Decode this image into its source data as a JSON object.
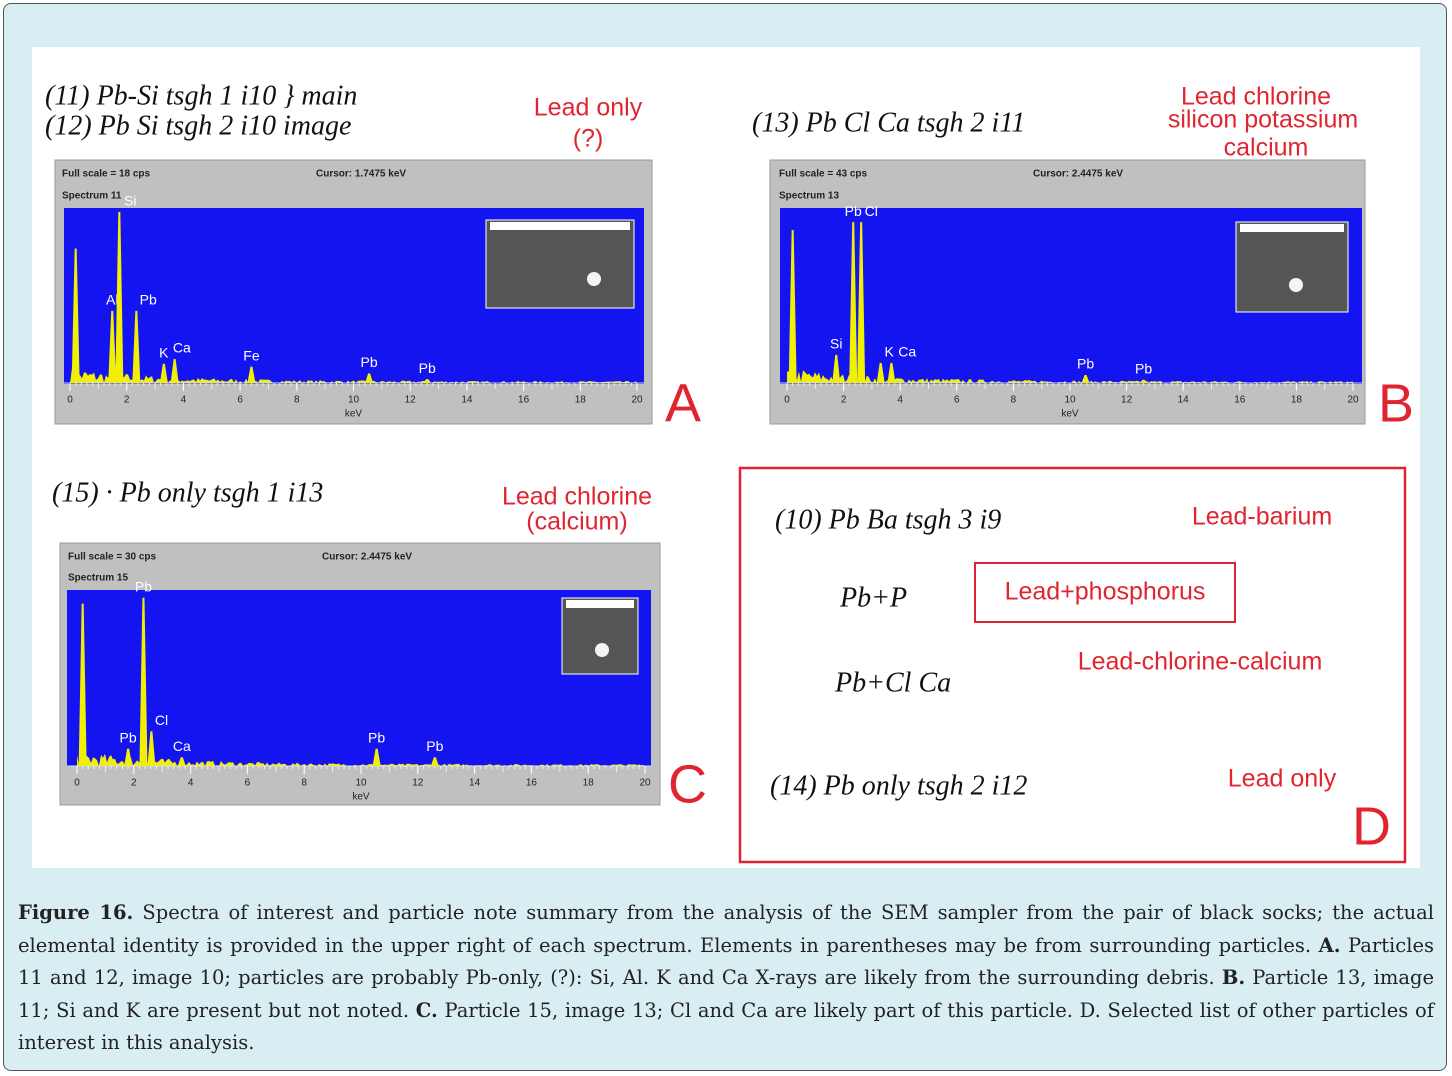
{
  "figure": {
    "panels": [
      {
        "letter": "A",
        "notes": [
          "(11)  Pb-Si  tsgh 1  i10  } main",
          "(12)  Pb Si  tsgh 2  i10  image"
        ],
        "annotation": [
          "Lead only",
          "(?)"
        ],
        "info": {
          "full_scale": "Full scale = 18  cps",
          "cursor": "Cursor:  1.7475 keV",
          "spectrum": "Spectrum  11"
        },
        "ylim": [
          0,
          18
        ],
        "xlim": [
          0,
          20
        ],
        "xticks": [
          0,
          2,
          4,
          6,
          8,
          10,
          12,
          14,
          16,
          18,
          20
        ],
        "xlabel": "keV",
        "peaks": [
          {
            "label": null,
            "kev": 0.2,
            "cps": 14
          },
          {
            "label": "Al",
            "kev": 1.49,
            "cps": 7.5
          },
          {
            "label": "Si",
            "kev": 1.74,
            "cps": 17.8
          },
          {
            "label": "Pb",
            "kev": 2.34,
            "cps": 7.5
          },
          {
            "label": "K",
            "kev": 3.31,
            "cps": 2
          },
          {
            "label": "Ca",
            "kev": 3.69,
            "cps": 2.5
          },
          {
            "label": "Fe",
            "kev": 6.4,
            "cps": 1.7
          },
          {
            "label": "Pb",
            "kev": 10.55,
            "cps": 1
          },
          {
            "label": "Pb",
            "kev": 12.6,
            "cps": 0.4
          }
        ]
      },
      {
        "letter": "B",
        "notes": [
          "(13)  Pb Cl Ca  tsgh 2  i11"
        ],
        "annotation": [
          "Lead chlorine",
          "silicon potassium",
          "calcium"
        ],
        "info": {
          "full_scale": "Full scale = 43  cps",
          "cursor": "Cursor:  2.4475 keV",
          "spectrum": "Spectrum  13"
        },
        "ylim": [
          0,
          43
        ],
        "xlim": [
          0,
          20
        ],
        "xticks": [
          0,
          2,
          4,
          6,
          8,
          10,
          12,
          14,
          16,
          18,
          20
        ],
        "xlabel": "keV",
        "peaks": [
          {
            "label": null,
            "kev": 0.2,
            "cps": 38
          },
          {
            "label": "Si",
            "kev": 1.74,
            "cps": 7
          },
          {
            "label": "Pb",
            "kev": 2.34,
            "cps": 40
          },
          {
            "label": "Cl",
            "kev": 2.62,
            "cps": 40
          },
          {
            "label": "K",
            "kev": 3.31,
            "cps": 5
          },
          {
            "label": "Ca",
            "kev": 3.69,
            "cps": 5
          },
          {
            "label": "Pb",
            "kev": 10.55,
            "cps": 2
          },
          {
            "label": "Pb",
            "kev": 12.6,
            "cps": 0.8
          }
        ]
      },
      {
        "letter": "C",
        "notes": [
          "(15)  · Pb only  tsgh 1  i13"
        ],
        "annotation": [
          "Lead chlorine",
          "(calcium)"
        ],
        "info": {
          "full_scale": "Full scale = 30  cps",
          "cursor": "Cursor:  2.4475 keV",
          "spectrum": "Spectrum  15"
        },
        "ylim": [
          0,
          30
        ],
        "xlim": [
          0,
          20
        ],
        "xticks": [
          0,
          2,
          4,
          6,
          8,
          10,
          12,
          14,
          16,
          18,
          20
        ],
        "xlabel": "keV",
        "peaks": [
          {
            "label": null,
            "kev": 0.2,
            "cps": 28
          },
          {
            "label": "Pb",
            "kev": 1.8,
            "cps": 3
          },
          {
            "label": "Pb",
            "kev": 2.34,
            "cps": 29
          },
          {
            "label": "Cl",
            "kev": 2.62,
            "cps": 6
          },
          {
            "label": "Ca",
            "kev": 3.69,
            "cps": 1.5
          },
          {
            "label": "Pb",
            "kev": 10.55,
            "cps": 3
          },
          {
            "label": "Pb",
            "kev": 12.6,
            "cps": 1.5
          }
        ]
      }
    ],
    "panel_d": {
      "letter": "D",
      "items": [
        {
          "note": "(10)  Pb Ba  tsgh 3  i9",
          "label": "Lead-barium",
          "boxed": false
        },
        {
          "note": "Pb+P",
          "label": "Lead+phosphorus",
          "boxed": true
        },
        {
          "note": "Pb+Cl Ca",
          "label": "Lead-chlorine-calcium",
          "boxed": false
        },
        {
          "note": "(14)  Pb only  tsgh 2  i12",
          "label": "Lead only",
          "boxed": false
        }
      ]
    },
    "caption": [
      {
        "text": "Figure 16.",
        "bold": true
      },
      {
        "text": " Spectra of interest and particle note summary from the analysis of the SEM sampler from the pair of black socks; the actual elemental identity is provided in the upper right of each spectrum. Elements in parentheses may be from surrounding particles. ",
        "bold": false
      },
      {
        "text": "A.",
        "bold": true
      },
      {
        "text": " Particles 11 and 12, image 10; particles are probably Pb-only, (?): Si, Al. K and Ca X-rays are likely from the surrounding debris. ",
        "bold": false
      },
      {
        "text": "B.",
        "bold": true
      },
      {
        "text": " Particle 13, image 11; Si and K are present but not noted. ",
        "bold": false
      },
      {
        "text": "C.",
        "bold": true
      },
      {
        "text": " Particle 15, image 13; Cl and Ca are likely part of this particle. D. Selected list of other particles of interest in this analysis.",
        "bold": false
      }
    ]
  }
}
